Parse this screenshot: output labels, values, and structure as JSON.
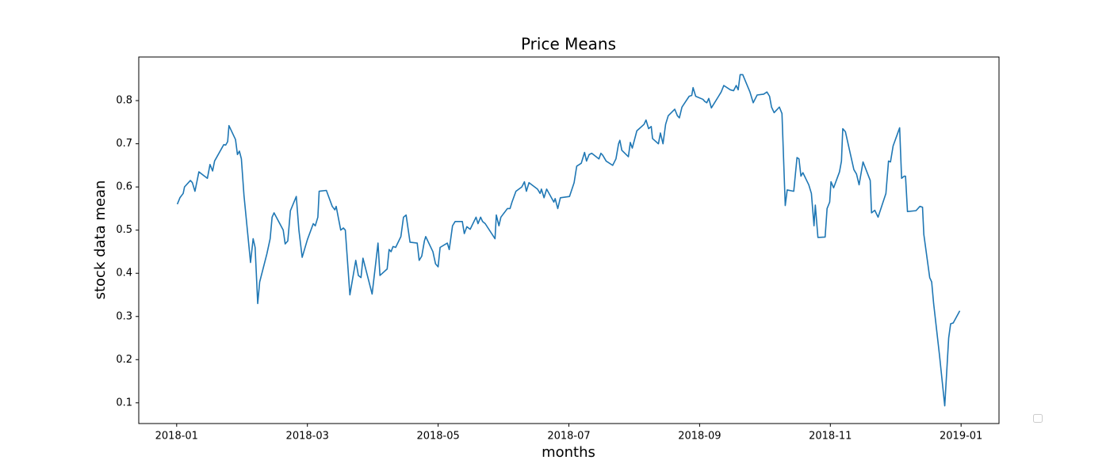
{
  "chart_data": {
    "type": "line",
    "title": "Price Means",
    "x_label": "months",
    "y_label": "stock data mean",
    "color": "#1f77b4",
    "xlim": [
      -0.58,
      12.58
    ],
    "xticks": [
      {
        "value": 0,
        "label": "2018-01"
      },
      {
        "value": 2,
        "label": "2018-03"
      },
      {
        "value": 4,
        "label": "2018-05"
      },
      {
        "value": 6,
        "label": "2018-07"
      },
      {
        "value": 8,
        "label": "2018-09"
      },
      {
        "value": 10,
        "label": "2018-11"
      },
      {
        "value": 12,
        "label": "2019-01"
      }
    ],
    "ylim": [
      0.052,
      0.901
    ],
    "yticks": [
      0.1,
      0.2,
      0.3,
      0.4,
      0.5,
      0.6,
      0.7,
      0.8
    ],
    "grid": false,
    "x": [
      0.01,
      0.05,
      0.1,
      0.12,
      0.21,
      0.24,
      0.28,
      0.34,
      0.47,
      0.51,
      0.55,
      0.58,
      0.72,
      0.75,
      0.78,
      0.8,
      0.9,
      0.93,
      0.96,
      0.99,
      1.03,
      1.13,
      1.17,
      1.2,
      1.24,
      1.27,
      1.38,
      1.43,
      1.46,
      1.49,
      1.63,
      1.66,
      1.7,
      1.74,
      1.83,
      1.87,
      1.92,
      2.0,
      2.09,
      2.12,
      2.16,
      2.18,
      2.29,
      2.38,
      2.42,
      2.44,
      2.51,
      2.55,
      2.58,
      2.65,
      2.74,
      2.78,
      2.82,
      2.85,
      2.99,
      3.05,
      3.08,
      3.11,
      3.22,
      3.25,
      3.28,
      3.31,
      3.35,
      3.43,
      3.47,
      3.51,
      3.57,
      3.68,
      3.71,
      3.75,
      3.79,
      3.81,
      3.92,
      3.96,
      4.0,
      4.03,
      4.14,
      4.17,
      4.22,
      4.26,
      4.37,
      4.4,
      4.44,
      4.49,
      4.58,
      4.61,
      4.65,
      4.68,
      4.72,
      4.87,
      4.89,
      4.93,
      4.96,
      5.06,
      5.1,
      5.13,
      5.19,
      5.28,
      5.32,
      5.35,
      5.39,
      5.52,
      5.56,
      5.58,
      5.62,
      5.66,
      5.77,
      5.79,
      5.83,
      5.87,
      6.01,
      6.08,
      6.12,
      6.19,
      6.24,
      6.27,
      6.31,
      6.35,
      6.46,
      6.49,
      6.52,
      6.57,
      6.67,
      6.72,
      6.76,
      6.78,
      6.81,
      6.91,
      6.94,
      6.97,
      7.04,
      7.15,
      7.18,
      7.22,
      7.26,
      7.28,
      7.37,
      7.4,
      7.44,
      7.48,
      7.52,
      7.62,
      7.66,
      7.69,
      7.73,
      7.84,
      7.88,
      7.9,
      7.94,
      8.05,
      8.08,
      8.11,
      8.14,
      8.18,
      8.29,
      8.33,
      8.37,
      8.47,
      8.52,
      8.56,
      8.59,
      8.62,
      8.66,
      8.77,
      8.82,
      8.88,
      8.98,
      9.03,
      9.07,
      9.1,
      9.14,
      9.22,
      9.26,
      9.31,
      9.34,
      9.44,
      9.49,
      9.52,
      9.55,
      9.58,
      9.67,
      9.71,
      9.75,
      9.77,
      9.81,
      9.92,
      9.95,
      9.99,
      10.01,
      10.05,
      10.14,
      10.17,
      10.19,
      10.23,
      10.36,
      10.4,
      10.44,
      10.5,
      10.61,
      10.63,
      10.68,
      10.73,
      10.85,
      10.89,
      10.92,
      10.96,
      11.06,
      11.09,
      11.13,
      11.15,
      11.18,
      11.31,
      11.37,
      11.41,
      11.43,
      11.52,
      11.55,
      11.58,
      11.67,
      11.75,
      11.81,
      11.84,
      11.88,
      11.98
    ],
    "values": [
      0.56,
      0.575,
      0.585,
      0.6,
      0.615,
      0.61,
      0.59,
      0.635,
      0.62,
      0.652,
      0.637,
      0.66,
      0.698,
      0.697,
      0.705,
      0.742,
      0.71,
      0.675,
      0.683,
      0.665,
      0.58,
      0.425,
      0.48,
      0.46,
      0.33,
      0.38,
      0.445,
      0.48,
      0.53,
      0.54,
      0.5,
      0.468,
      0.475,
      0.545,
      0.578,
      0.5,
      0.437,
      0.478,
      0.515,
      0.51,
      0.53,
      0.59,
      0.592,
      0.555,
      0.547,
      0.555,
      0.5,
      0.505,
      0.5,
      0.35,
      0.43,
      0.395,
      0.39,
      0.435,
      0.352,
      0.43,
      0.47,
      0.395,
      0.41,
      0.455,
      0.45,
      0.462,
      0.46,
      0.485,
      0.53,
      0.535,
      0.472,
      0.47,
      0.43,
      0.44,
      0.475,
      0.485,
      0.45,
      0.422,
      0.415,
      0.46,
      0.47,
      0.455,
      0.51,
      0.52,
      0.52,
      0.492,
      0.508,
      0.502,
      0.53,
      0.515,
      0.53,
      0.52,
      0.515,
      0.48,
      0.535,
      0.51,
      0.53,
      0.55,
      0.55,
      0.565,
      0.59,
      0.6,
      0.612,
      0.59,
      0.61,
      0.595,
      0.585,
      0.595,
      0.575,
      0.595,
      0.565,
      0.573,
      0.55,
      0.575,
      0.578,
      0.61,
      0.648,
      0.655,
      0.68,
      0.66,
      0.675,
      0.678,
      0.665,
      0.678,
      0.673,
      0.66,
      0.65,
      0.665,
      0.7,
      0.708,
      0.685,
      0.67,
      0.703,
      0.69,
      0.73,
      0.745,
      0.755,
      0.735,
      0.74,
      0.712,
      0.7,
      0.725,
      0.7,
      0.745,
      0.765,
      0.78,
      0.765,
      0.76,
      0.785,
      0.81,
      0.812,
      0.83,
      0.81,
      0.803,
      0.798,
      0.795,
      0.805,
      0.783,
      0.81,
      0.82,
      0.835,
      0.825,
      0.823,
      0.835,
      0.825,
      0.86,
      0.86,
      0.82,
      0.795,
      0.813,
      0.815,
      0.82,
      0.81,
      0.785,
      0.772,
      0.785,
      0.77,
      0.557,
      0.593,
      0.59,
      0.668,
      0.665,
      0.625,
      0.633,
      0.605,
      0.585,
      0.51,
      0.558,
      0.483,
      0.484,
      0.55,
      0.565,
      0.612,
      0.598,
      0.635,
      0.66,
      0.735,
      0.728,
      0.64,
      0.63,
      0.605,
      0.658,
      0.615,
      0.54,
      0.546,
      0.53,
      0.585,
      0.66,
      0.658,
      0.695,
      0.737,
      0.62,
      0.625,
      0.625,
      0.543,
      0.545,
      0.555,
      0.553,
      0.49,
      0.39,
      0.38,
      0.33,
      0.21,
      0.093,
      0.25,
      0.283,
      0.285,
      0.313
    ]
  }
}
